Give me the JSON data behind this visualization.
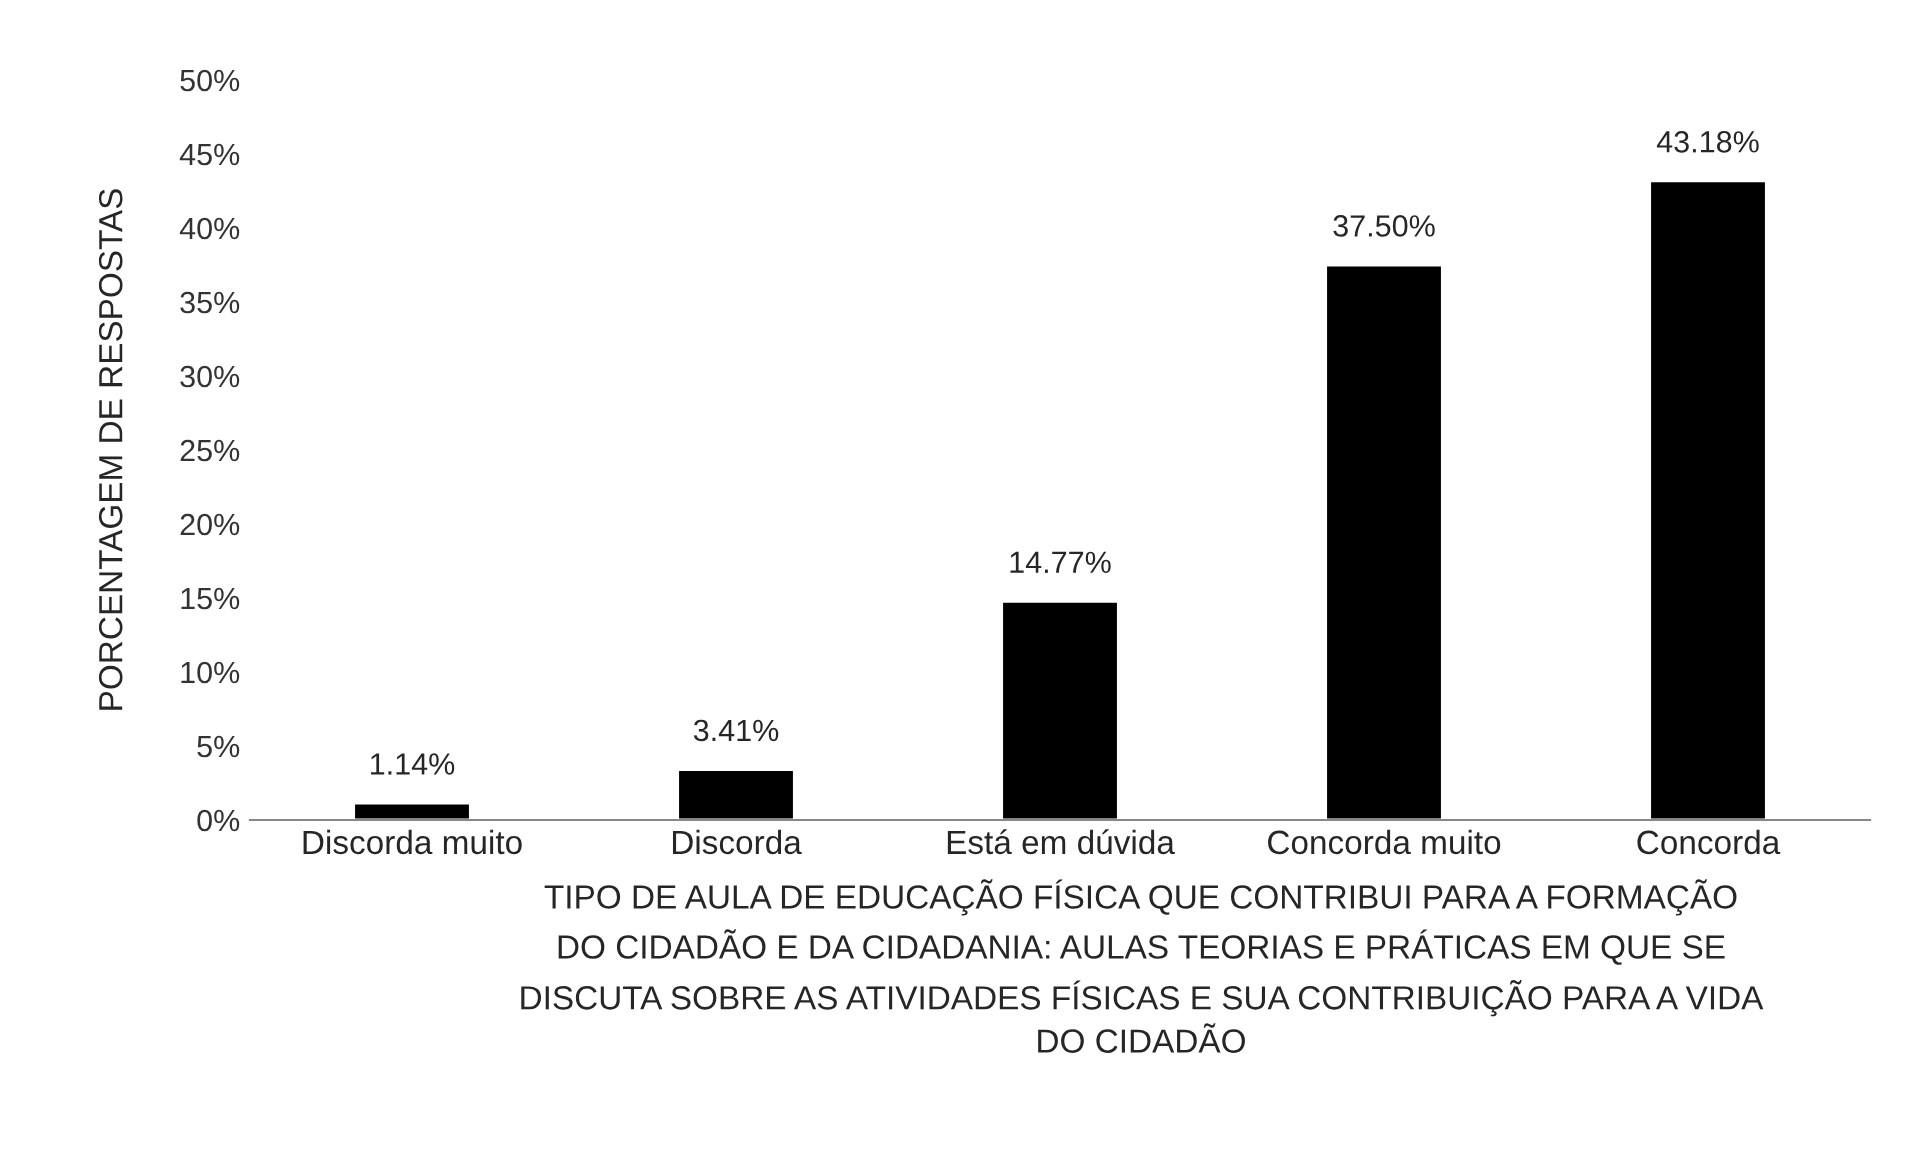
{
  "chart_data": {
    "type": "bar",
    "categories": [
      "Discorda muito",
      "Discorda",
      "Está em dúvida",
      "Concorda muito",
      "Concorda"
    ],
    "values": [
      1.14,
      3.41,
      14.77,
      37.5,
      43.18
    ],
    "value_labels": [
      "1.14%",
      "3.41%",
      "14.77%",
      "37.50%",
      "43.18%"
    ],
    "color": "#000000",
    "ylabel": "PORCENTAGEM DE RESPOSTAS",
    "xlabel": "TIPO DE AULA DE EDUCAÇÃO FÍSICA QUE CONTRIBUI PARA A FORMAÇÃO\nDO CIDADÃO E DA CIDADANIA: AULAS TEORIAS E PRÁTICAS EM QUE SE\nDISCUTA SOBRE AS ATIVIDADES FÍSICAS E SUA CONTRIBUIÇÃO PARA A VIDA\nDO CIDADÃO",
    "ylim": [
      0,
      50
    ],
    "yticks": [
      {
        "value": 0,
        "label": "0%"
      },
      {
        "value": 5,
        "label": "5%"
      },
      {
        "value": 10,
        "label": "10%"
      },
      {
        "value": 15,
        "label": "15%"
      },
      {
        "value": 20,
        "label": "20%"
      },
      {
        "value": 25,
        "label": "25%"
      },
      {
        "value": 30,
        "label": "30%"
      },
      {
        "value": 35,
        "label": "35%"
      },
      {
        "value": 40,
        "label": "40%"
      },
      {
        "value": 45,
        "label": "45%"
      },
      {
        "value": 50,
        "label": "50%"
      }
    ],
    "grid": false,
    "legend": false
  }
}
